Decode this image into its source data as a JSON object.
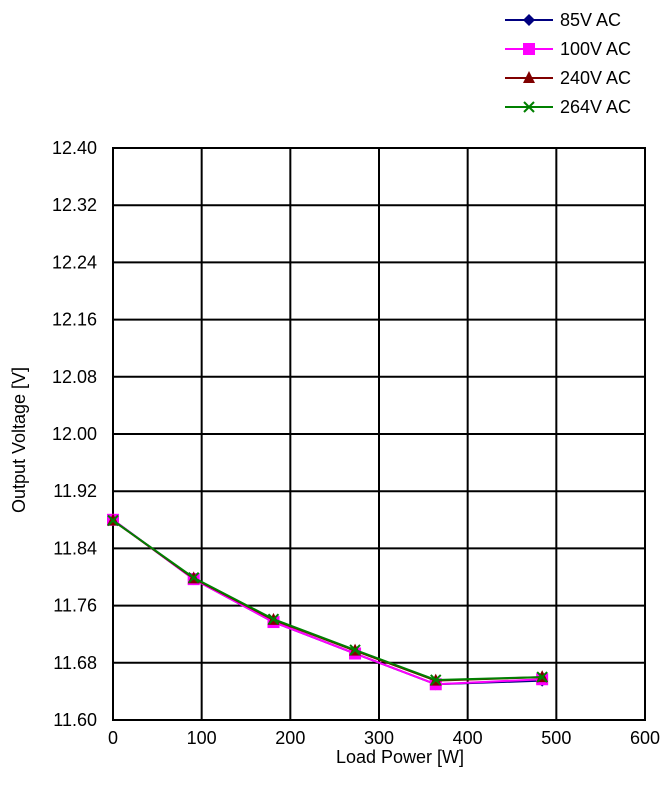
{
  "chart_data": {
    "type": "line",
    "title": "",
    "xlabel": "Load Power [W]",
    "ylabel": "Output Voltage [V]",
    "xlim": [
      0,
      600
    ],
    "ylim": [
      11.6,
      12.4
    ],
    "xticks": [
      0,
      100,
      200,
      300,
      400,
      500,
      600
    ],
    "yticks": [
      11.6,
      11.68,
      11.76,
      11.84,
      11.92,
      12.0,
      12.08,
      12.16,
      12.24,
      12.32,
      12.4
    ],
    "grid": true,
    "legend_position": "top-right",
    "series": [
      {
        "name": "85V AC",
        "color": "#000080",
        "marker": "diamond",
        "x": [
          0,
          91,
          181,
          273,
          364,
          484
        ],
        "y": [
          11.88,
          11.797,
          11.737,
          11.693,
          11.65,
          11.655
        ]
      },
      {
        "name": "100V AC",
        "color": "#ff00ff",
        "marker": "square",
        "x": [
          0,
          91,
          181,
          273,
          364,
          484
        ],
        "y": [
          11.88,
          11.797,
          11.737,
          11.693,
          11.65,
          11.657
        ]
      },
      {
        "name": "240V AC",
        "color": "#800000",
        "marker": "triangle",
        "x": [
          0,
          91,
          181,
          273,
          364,
          484
        ],
        "y": [
          11.879,
          11.798,
          11.74,
          11.697,
          11.655,
          11.66
        ]
      },
      {
        "name": "264V AC",
        "color": "#008000",
        "marker": "x",
        "x": [
          0,
          91,
          181,
          273,
          364,
          484
        ],
        "y": [
          11.879,
          11.799,
          11.741,
          11.698,
          11.656,
          11.66
        ]
      }
    ]
  }
}
